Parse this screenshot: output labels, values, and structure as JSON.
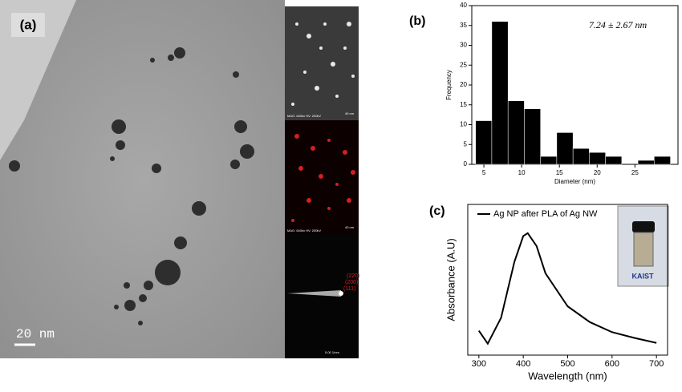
{
  "panels": {
    "a": {
      "label": "(a)",
      "scale_bar": "20 nm",
      "hr_info": "MAG: 640kx  HV: 200kV",
      "hr_scale": "40 nm",
      "map_info": "MAG: 640kx  HV: 200kV",
      "map_scale": "40 nm",
      "saed_rings": [
        "(220)",
        "(200)",
        "(111)"
      ],
      "saed_scale": "5.00 1/nm"
    },
    "b": {
      "label": "(b)"
    },
    "c": {
      "label": "(c)",
      "inset_text": "KAIST"
    }
  },
  "chart_data": [
    {
      "type": "histogram",
      "annotation": "7.24 ± 2.67 nm",
      "x_label": "Diameter (nm)",
      "y_label": "Frequency",
      "bins": [
        3.9,
        6.05,
        8.2,
        10.35,
        12.5,
        14.65,
        16.8,
        18.95,
        21.1,
        23.25,
        25.4,
        27.55,
        29.7
      ],
      "values": [
        11,
        36,
        16,
        14,
        2,
        8,
        4,
        3,
        2,
        0,
        1,
        2
      ],
      "color": "#000000",
      "xlim": [
        3.4,
        30.7
      ],
      "xticks": [
        5,
        10,
        15,
        20,
        25
      ],
      "ylim": [
        0,
        40
      ],
      "yticks": [
        0,
        5,
        10,
        15,
        20,
        25,
        30,
        35,
        40
      ]
    },
    {
      "type": "line",
      "x_label": "Wavelength (nm)",
      "y_label": "Absorbance (A.U)",
      "x": [
        300,
        320,
        350,
        380,
        400,
        410,
        430,
        450,
        500,
        550,
        600,
        650,
        700
      ],
      "series": [
        {
          "name": "Ag NP after PLA of Ag NW",
          "color": "#000000",
          "values": [
            0.17,
            0.08,
            0.26,
            0.65,
            0.83,
            0.85,
            0.76,
            0.57,
            0.34,
            0.23,
            0.16,
            0.12,
            0.085
          ]
        }
      ],
      "xlim": [
        275,
        725
      ],
      "xticks": [
        300,
        400,
        500,
        600,
        700
      ],
      "ylim": [
        0,
        1.05
      ]
    }
  ]
}
